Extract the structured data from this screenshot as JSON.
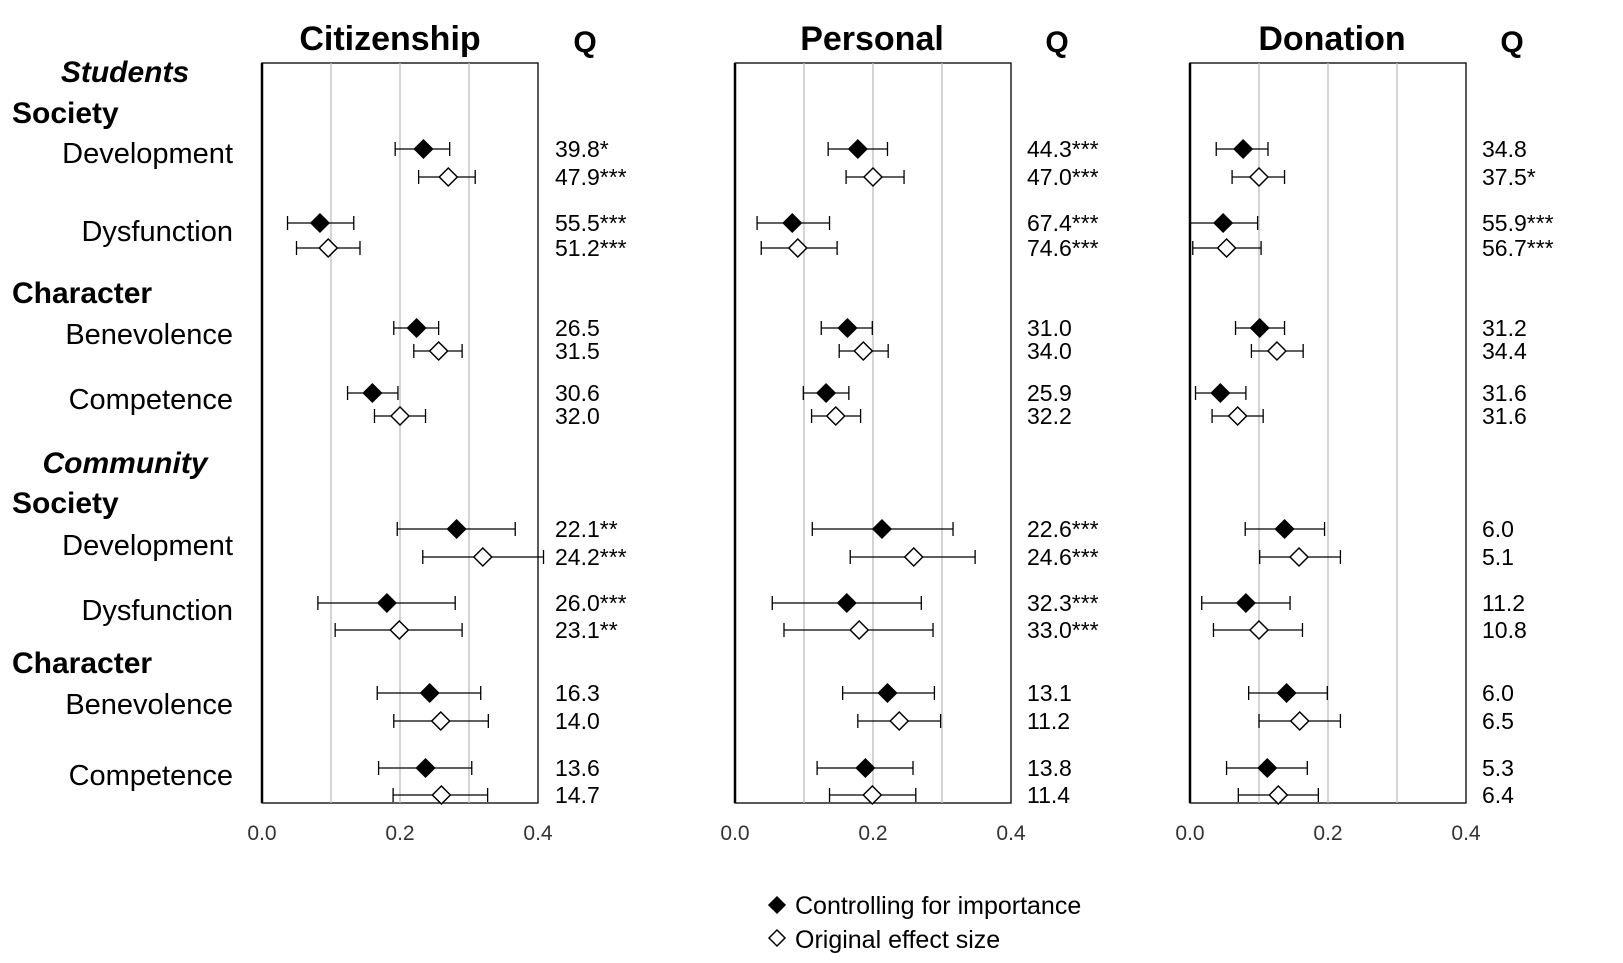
{
  "chart_data": {
    "type": "scatter",
    "legend": [
      {
        "symbol": "filled-diamond",
        "label": "Controlling for importance",
        "color": "#000000"
      },
      {
        "symbol": "open-diamond",
        "label": "Original effect size",
        "color": "#ffffff"
      }
    ],
    "legend_position": "bottom-center",
    "x_ticks": [
      "0.0",
      "0.2",
      "0.4"
    ],
    "xlim": [
      0,
      0.4
    ],
    "grid": true,
    "q_header": "Q",
    "row_labels": [
      {
        "text": "Students",
        "style": "group"
      },
      {
        "text": "Society",
        "style": "category"
      },
      {
        "text": "Development",
        "style": "row"
      },
      {
        "text": "Dysfunction",
        "style": "row"
      },
      {
        "text": "Character",
        "style": "category"
      },
      {
        "text": "Benevolence",
        "style": "row"
      },
      {
        "text": "Competence",
        "style": "row"
      },
      {
        "text": "Community",
        "style": "group"
      },
      {
        "text": "Society",
        "style": "category"
      },
      {
        "text": "Development",
        "style": "row"
      },
      {
        "text": "Dysfunction",
        "style": "row"
      },
      {
        "text": "Character",
        "style": "category"
      },
      {
        "text": "Benevolence",
        "style": "row"
      },
      {
        "text": "Competence",
        "style": "row"
      }
    ],
    "panels": [
      {
        "title": "Citizenship",
        "rows": [
          {
            "est": 0.234,
            "lo": 0.193,
            "hi": 0.272,
            "q": "39.8*"
          },
          {
            "est": 0.27,
            "lo": 0.227,
            "hi": 0.309,
            "q": "47.9***"
          },
          {
            "est": 0.084,
            "lo": 0.037,
            "hi": 0.133,
            "q": "55.5***"
          },
          {
            "est": 0.096,
            "lo": 0.05,
            "hi": 0.142,
            "q": "51.2***"
          },
          {
            "est": 0.224,
            "lo": 0.191,
            "hi": 0.256,
            "q": "26.5"
          },
          {
            "est": 0.256,
            "lo": 0.22,
            "hi": 0.29,
            "q": "31.5"
          },
          {
            "est": 0.16,
            "lo": 0.124,
            "hi": 0.197,
            "q": "30.6"
          },
          {
            "est": 0.2,
            "lo": 0.163,
            "hi": 0.237,
            "q": "32.0"
          },
          {
            "est": 0.282,
            "lo": 0.196,
            "hi": 0.367,
            "q": "22.1**"
          },
          {
            "est": 0.32,
            "lo": 0.233,
            "hi": 0.408,
            "q": "24.2***"
          },
          {
            "est": 0.181,
            "lo": 0.081,
            "hi": 0.28,
            "q": "26.0***"
          },
          {
            "est": 0.199,
            "lo": 0.106,
            "hi": 0.29,
            "q": "23.1**"
          },
          {
            "est": 0.243,
            "lo": 0.167,
            "hi": 0.317,
            "q": "16.3"
          },
          {
            "est": 0.259,
            "lo": 0.191,
            "hi": 0.328,
            "q": "14.0"
          },
          {
            "est": 0.237,
            "lo": 0.169,
            "hi": 0.304,
            "q": "13.6"
          },
          {
            "est": 0.26,
            "lo": 0.19,
            "hi": 0.327,
            "q": "14.7"
          }
        ]
      },
      {
        "title": "Personal",
        "rows": [
          {
            "est": 0.178,
            "lo": 0.135,
            "hi": 0.221,
            "q": "44.3***"
          },
          {
            "est": 0.2,
            "lo": 0.161,
            "hi": 0.245,
            "q": "47.0***"
          },
          {
            "est": 0.083,
            "lo": 0.032,
            "hi": 0.137,
            "q": "67.4***"
          },
          {
            "est": 0.091,
            "lo": 0.038,
            "hi": 0.148,
            "q": "74.6***"
          },
          {
            "est": 0.163,
            "lo": 0.125,
            "hi": 0.199,
            "q": "31.0"
          },
          {
            "est": 0.186,
            "lo": 0.151,
            "hi": 0.222,
            "q": "34.0"
          },
          {
            "est": 0.132,
            "lo": 0.099,
            "hi": 0.165,
            "q": "25.9"
          },
          {
            "est": 0.146,
            "lo": 0.111,
            "hi": 0.182,
            "q": "32.2"
          },
          {
            "est": 0.213,
            "lo": 0.112,
            "hi": 0.316,
            "q": "22.6***"
          },
          {
            "est": 0.259,
            "lo": 0.167,
            "hi": 0.348,
            "q": "24.6***"
          },
          {
            "est": 0.162,
            "lo": 0.054,
            "hi": 0.27,
            "q": "32.3***"
          },
          {
            "est": 0.18,
            "lo": 0.071,
            "hi": 0.287,
            "q": "33.0***"
          },
          {
            "est": 0.221,
            "lo": 0.156,
            "hi": 0.289,
            "q": "13.1"
          },
          {
            "est": 0.238,
            "lo": 0.178,
            "hi": 0.298,
            "q": "11.2"
          },
          {
            "est": 0.189,
            "lo": 0.119,
            "hi": 0.258,
            "q": "13.8"
          },
          {
            "est": 0.199,
            "lo": 0.137,
            "hi": 0.262,
            "q": "11.4"
          }
        ]
      },
      {
        "title": "Donation",
        "rows": [
          {
            "est": 0.077,
            "lo": 0.038,
            "hi": 0.113,
            "q": "34.8"
          },
          {
            "est": 0.1,
            "lo": 0.061,
            "hi": 0.137,
            "q": "37.5*"
          },
          {
            "est": 0.048,
            "lo": 0.0,
            "hi": 0.098,
            "q": "55.9***"
          },
          {
            "est": 0.053,
            "lo": 0.004,
            "hi": 0.103,
            "q": "56.7***"
          },
          {
            "est": 0.101,
            "lo": 0.066,
            "hi": 0.137,
            "q": "31.2"
          },
          {
            "est": 0.126,
            "lo": 0.089,
            "hi": 0.164,
            "q": "34.4"
          },
          {
            "est": 0.044,
            "lo": 0.008,
            "hi": 0.081,
            "q": "31.6"
          },
          {
            "est": 0.069,
            "lo": 0.032,
            "hi": 0.106,
            "q": "31.6"
          },
          {
            "est": 0.137,
            "lo": 0.08,
            "hi": 0.195,
            "q": "6.0"
          },
          {
            "est": 0.158,
            "lo": 0.101,
            "hi": 0.218,
            "q": "5.1"
          },
          {
            "est": 0.081,
            "lo": 0.017,
            "hi": 0.145,
            "q": "11.2"
          },
          {
            "est": 0.1,
            "lo": 0.034,
            "hi": 0.163,
            "q": "10.8"
          },
          {
            "est": 0.14,
            "lo": 0.085,
            "hi": 0.199,
            "q": "6.0"
          },
          {
            "est": 0.159,
            "lo": 0.1,
            "hi": 0.218,
            "q": "6.5"
          },
          {
            "est": 0.112,
            "lo": 0.053,
            "hi": 0.17,
            "q": "5.3"
          },
          {
            "est": 0.128,
            "lo": 0.07,
            "hi": 0.186,
            "q": "6.4"
          }
        ]
      }
    ]
  }
}
